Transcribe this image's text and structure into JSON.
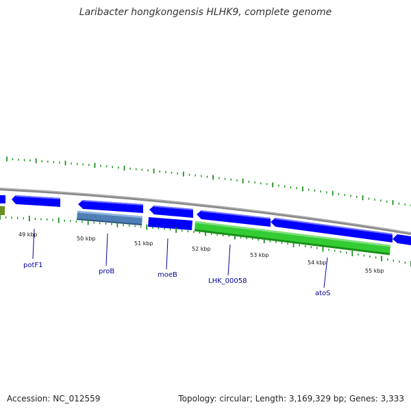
{
  "title": "Laribacter hongkongensis HLHK9, complete genome",
  "footer": {
    "accession": "Accession: NC_012559",
    "topology": "Topology: circular; Length: 3,169,329 bp; Genes: 3,333"
  },
  "colors": {
    "backbone": "#888888",
    "gene_forward": "#0000ff",
    "gene_other": "#4f7fb6",
    "gene_rna": "#33cc33",
    "gene_olive": "#6a8e23",
    "tick": "#1a8f1a",
    "tick_label": "#111111",
    "gene_label": "#000099"
  },
  "tick_labels": [
    "49 kbp",
    "50 kbp",
    "51 kbp",
    "52 kbp",
    "53 kbp",
    "54 kbp",
    "55 kbp"
  ],
  "gene_labels": [
    "potF1",
    "proB",
    "moeB",
    "LHK_00058",
    "atoS"
  ]
}
